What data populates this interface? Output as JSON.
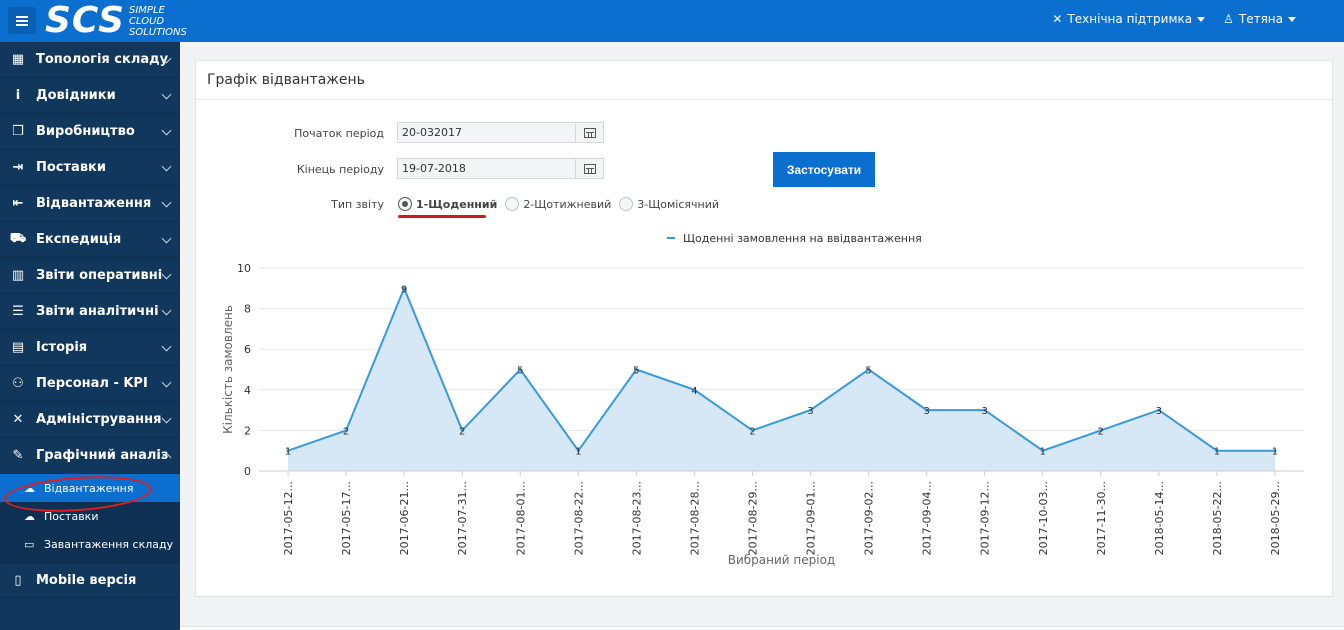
{
  "header": {
    "logo": "SCS",
    "logo_sub": [
      "SIMPLE",
      "CLOUD",
      "SOLUTIONS"
    ],
    "support_label": "Технічна підтримка",
    "user_label": "Тетяна"
  },
  "sidebar": {
    "items": [
      {
        "label": "Топологія складу",
        "icon": "warehouse-icon",
        "glyph": "▦"
      },
      {
        "label": "Довідники",
        "icon": "info-icon",
        "glyph": "i"
      },
      {
        "label": "Виробництво",
        "icon": "cube-icon",
        "glyph": "❒"
      },
      {
        "label": "Поставки",
        "icon": "sign-in-icon",
        "glyph": "⇥"
      },
      {
        "label": "Відвантаження",
        "icon": "sign-out-icon",
        "glyph": "⇤"
      },
      {
        "label": "Експедиція",
        "icon": "truck-icon",
        "glyph": "⛟"
      },
      {
        "label": "Звіти оперативні",
        "icon": "bar-chart-icon",
        "glyph": "▥"
      },
      {
        "label": "Звіти аналітичні",
        "icon": "report-icon",
        "glyph": "☰"
      },
      {
        "label": "Історія",
        "icon": "history-icon",
        "glyph": "▤"
      },
      {
        "label": "Персонал - KPI",
        "icon": "people-icon",
        "glyph": "⚇"
      },
      {
        "label": "Адміністрування",
        "icon": "tools-icon",
        "glyph": "✕"
      },
      {
        "label": "Графічний аналіз",
        "icon": "chart-edit-icon",
        "glyph": "✎"
      }
    ],
    "subitems": [
      {
        "label": "Відвантаження",
        "icon": "cloud-upload-icon",
        "glyph": "☁"
      },
      {
        "label": "Поставки",
        "icon": "cloud-download-icon",
        "glyph": "☁"
      },
      {
        "label": "Завантаження складу",
        "icon": "battery-icon",
        "glyph": "▭"
      }
    ],
    "mobile_label": "Mobile версія"
  },
  "card": {
    "title": "Графік відвантажень",
    "start_label": "Початок період",
    "start_value": "20-032017",
    "end_label": "Кінець періоду",
    "end_value": "19-07-2018",
    "apply_label": "Застосувати",
    "type_label": "Тип звіту",
    "radios": [
      "1-Щоденний",
      "2-Щотижневий",
      "3-Щомісячний"
    ],
    "selected_radio": 0
  },
  "chart_data": {
    "type": "area",
    "legend": "Щоденні замовлення на ввідвантаження",
    "legend_position": "top-center",
    "xlabel": "Вибраний період",
    "ylabel": "Кількість замовлень",
    "ylim": [
      0,
      10
    ],
    "yticks": [
      0,
      2,
      4,
      6,
      8,
      10
    ],
    "grid": true,
    "categories": [
      "2017-05-12...",
      "2017-05-17...",
      "2017-06-21...",
      "2017-07-31...",
      "2017-08-01...",
      "2017-08-22...",
      "2017-08-23...",
      "2017-08-28...",
      "2017-08-29...",
      "2017-09-01...",
      "2017-09-02...",
      "2017-09-04...",
      "2017-09-12...",
      "2017-10-03...",
      "2017-11-30...",
      "2018-05-14...",
      "2018-05-22...",
      "2018-05-29..."
    ],
    "values": [
      1,
      2,
      9,
      2,
      5,
      1,
      5,
      4,
      2,
      3,
      5,
      3,
      3,
      1,
      2,
      3,
      1,
      1
    ],
    "colors": {
      "line": "#3a9ad9",
      "fill": "#d6e8f5"
    }
  }
}
